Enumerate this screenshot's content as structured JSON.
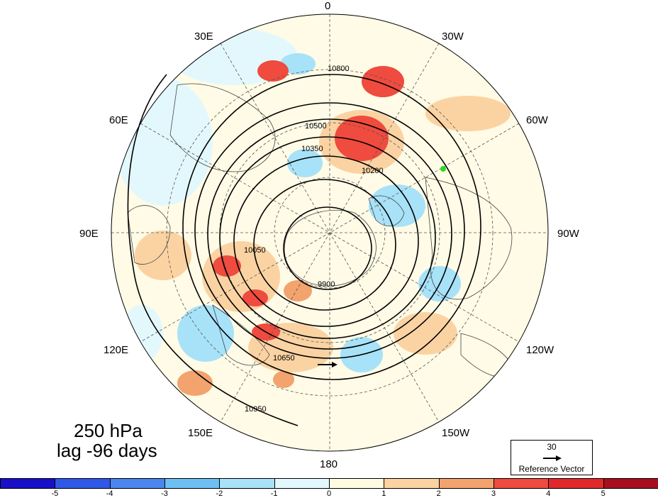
{
  "map": {
    "level": "250 hPa",
    "lag": "lag -96 days",
    "longitude_labels": [
      {
        "text": "0",
        "lon": 0
      },
      {
        "text": "30W",
        "lon": -30
      },
      {
        "text": "60W",
        "lon": -60
      },
      {
        "text": "90W",
        "lon": -90
      },
      {
        "text": "120W",
        "lon": -120
      },
      {
        "text": "150W",
        "lon": -150
      },
      {
        "text": "180",
        "lon": 180
      },
      {
        "text": "150E",
        "lon": 150
      },
      {
        "text": "120E",
        "lon": 120
      },
      {
        "text": "90E",
        "lon": 90
      },
      {
        "text": "60E",
        "lon": 60
      },
      {
        "text": "30E",
        "lon": 30
      }
    ],
    "contour_levels": [
      "9900",
      "10050",
      "10200",
      "10350",
      "10500",
      "10650",
      "10800",
      "10950"
    ],
    "marker_color": "#22dd22"
  },
  "reference_vector": {
    "value": "30",
    "caption": "Reference Vector"
  },
  "colorbar": {
    "ticks": [
      "-5",
      "-4",
      "-3",
      "-2",
      "-1",
      "0",
      "1",
      "2",
      "3",
      "4",
      "5"
    ],
    "colors": [
      "#1a0fc8",
      "#2f58e6",
      "#4a86ee",
      "#6fc0f2",
      "#a7e2f8",
      "#e3f8fd",
      "#fffbe2",
      "#fbd3a3",
      "#f2a36e",
      "#ef4b3e",
      "#e1292b",
      "#a80f1e"
    ]
  }
}
